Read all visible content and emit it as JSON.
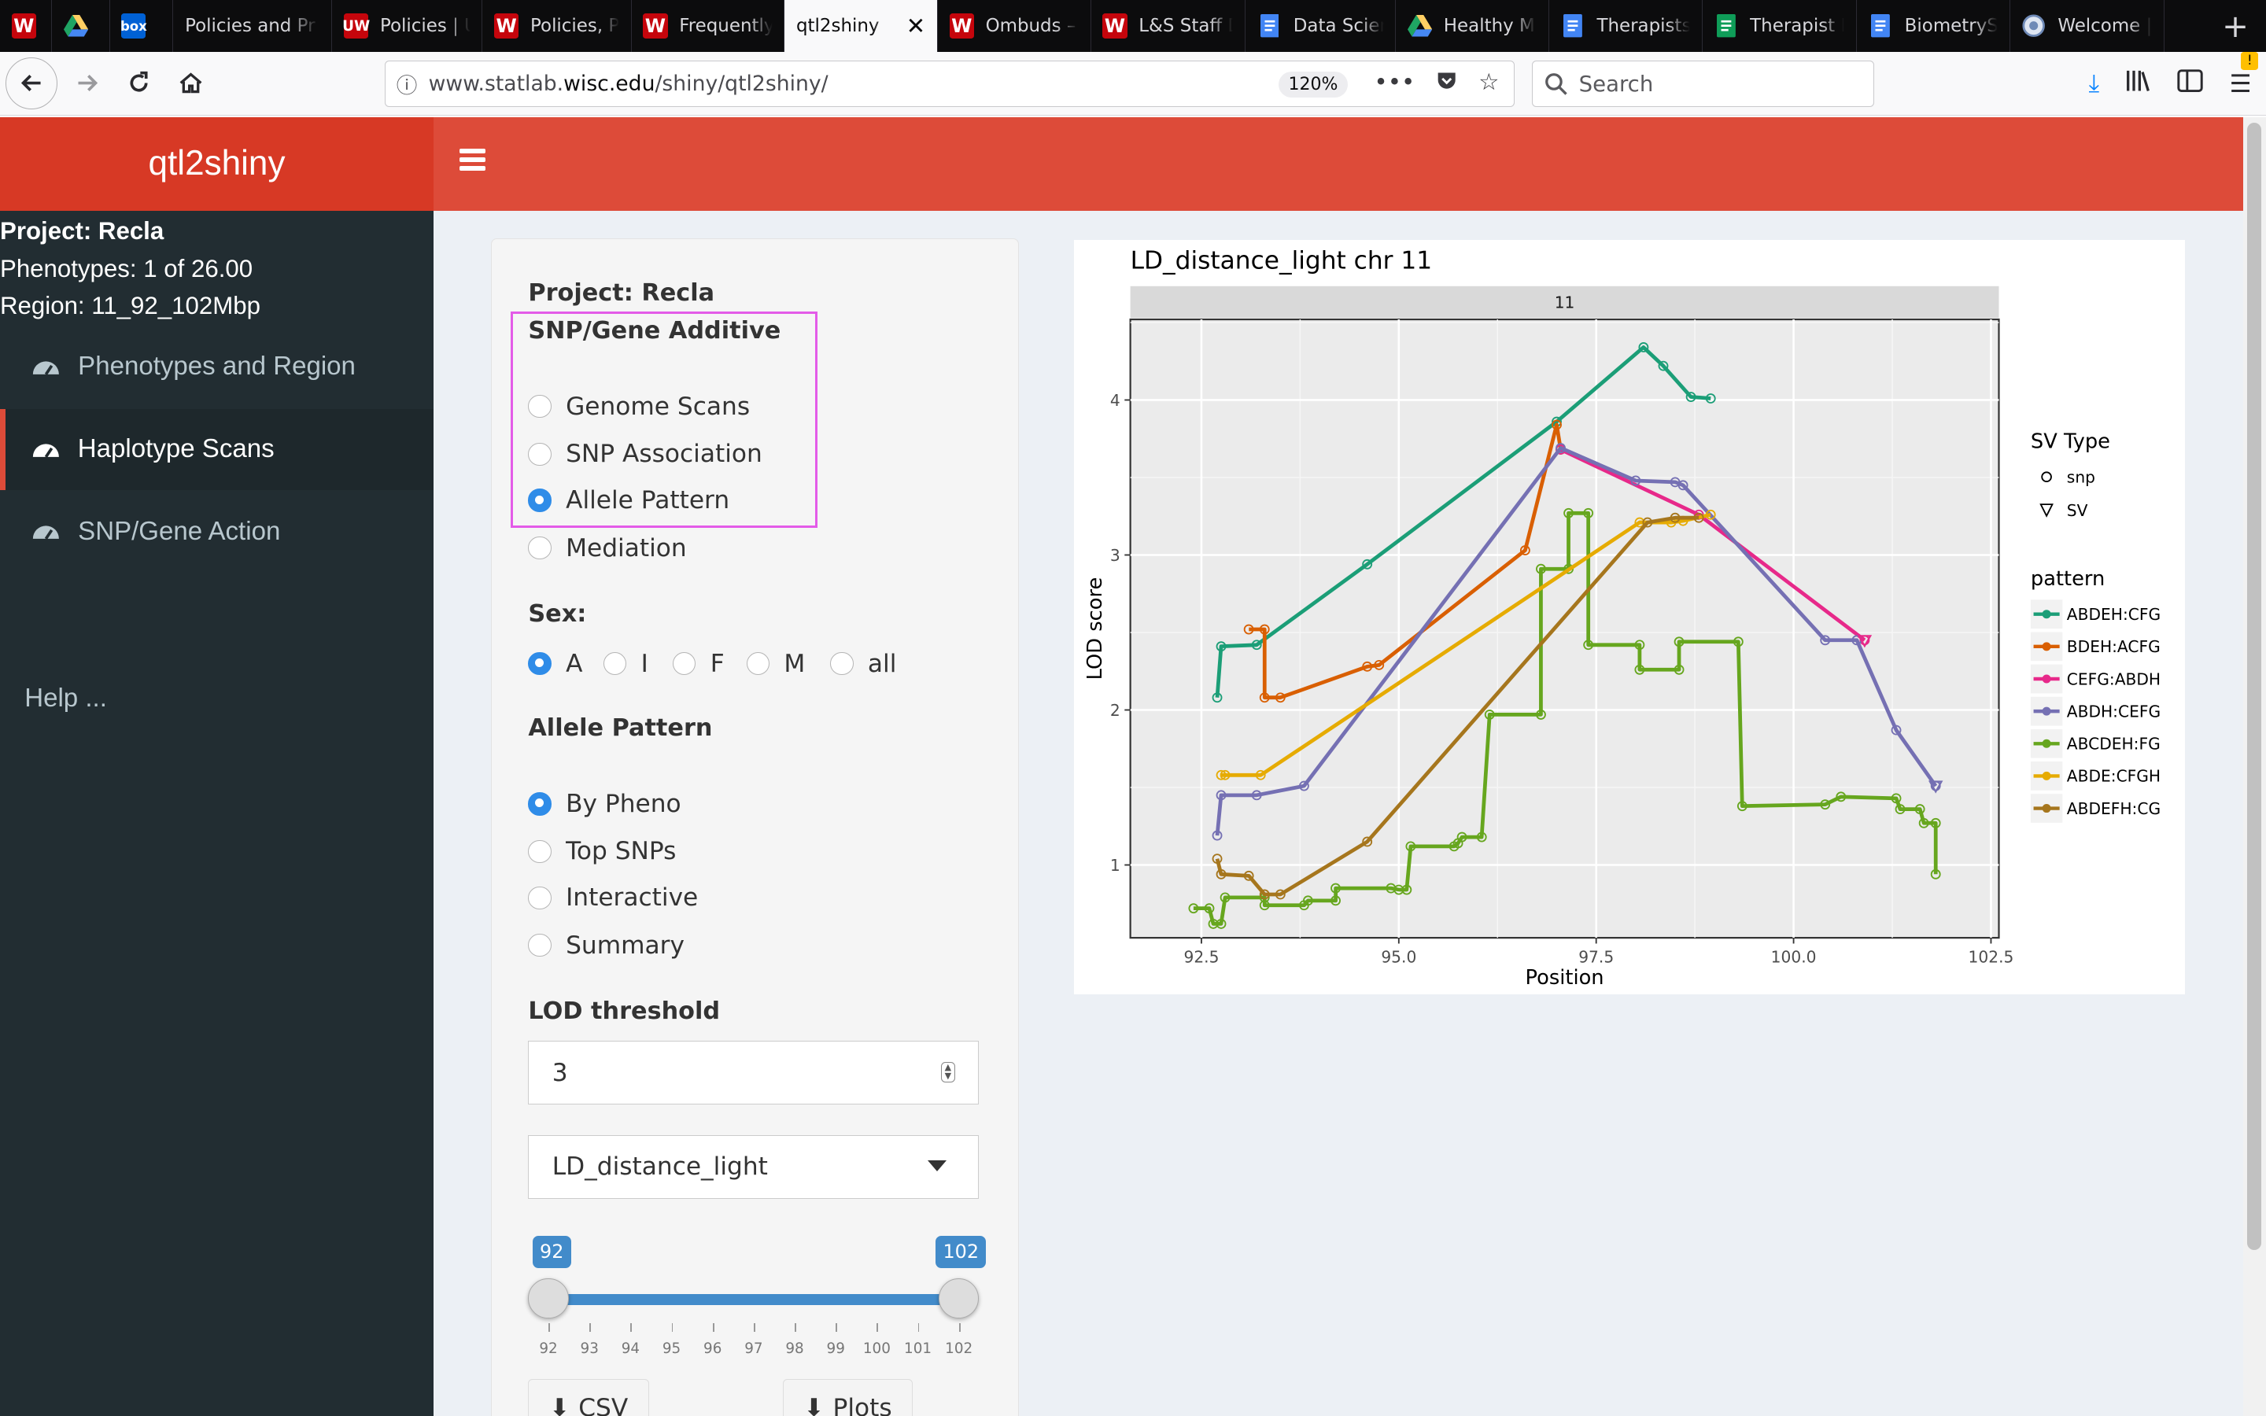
{
  "browser": {
    "tabs": [
      {
        "title": "",
        "icon": "W",
        "icon_color": "#c5050c"
      },
      {
        "title": "",
        "icon": "drive",
        "icon_color": "#1fa463"
      },
      {
        "title": "",
        "icon": "box",
        "icon_color": "#0061d5"
      },
      {
        "title": "Policies and Pr",
        "icon": "",
        "icon_color": ""
      },
      {
        "title": "Policies | U",
        "icon": "UW",
        "icon_color": "#c5050c"
      },
      {
        "title": "Policies, P",
        "icon": "W",
        "icon_color": "#c5050c"
      },
      {
        "title": "Frequently",
        "icon": "W",
        "icon_color": "#c5050c"
      },
      {
        "title": "qtl2shiny",
        "icon": "",
        "icon_color": "",
        "active": true
      },
      {
        "title": "Ombuds –",
        "icon": "W",
        "icon_color": "#c5050c"
      },
      {
        "title": "L&S Staff D",
        "icon": "W",
        "icon_color": "#c5050c"
      },
      {
        "title": "Data Scien",
        "icon": "doc",
        "icon_color": "#4285f4"
      },
      {
        "title": "Healthy Mi",
        "icon": "drive",
        "icon_color": "#1fa463"
      },
      {
        "title": "Therapists",
        "icon": "doc",
        "icon_color": "#4285f4"
      },
      {
        "title": "Therapist I",
        "icon": "sheet",
        "icon_color": "#0f9d58"
      },
      {
        "title": "BiometrySe",
        "icon": "doc",
        "icon_color": "#4285f4"
      },
      {
        "title": "Welcome |",
        "icon": "globe",
        "icon_color": "#6f8ab7"
      }
    ],
    "url_prefix": "www.statlab.",
    "url_domain": "wisc.edu",
    "url_path": "/shiny/qtl2shiny/",
    "zoom": "120%",
    "search_placeholder": "Search"
  },
  "app": {
    "title": "qtl2shiny",
    "sidebar": {
      "project": "Project: Recla",
      "phenotypes": "Phenotypes: 1 of 26.00",
      "region": "Region: 11_92_102Mbp",
      "items": [
        {
          "label": "Phenotypes and Region",
          "active": false
        },
        {
          "label": "Haplotype Scans",
          "active": true
        },
        {
          "label": "SNP/Gene Action",
          "active": false
        }
      ],
      "help": "Help ..."
    },
    "panel": {
      "project": "Project: Recla",
      "mode_label": "SNP/Gene Additive",
      "modes": [
        "Genome Scans",
        "SNP Association",
        "Allele Pattern",
        "Mediation"
      ],
      "mode_selected": "Allele Pattern",
      "sex_label": "Sex:",
      "sex_options": [
        "A",
        "I",
        "F",
        "M",
        "all"
      ],
      "sex_selected": "A",
      "allele_label": "Allele Pattern",
      "allele_options": [
        "By Pheno",
        "Top SNPs",
        "Interactive",
        "Summary"
      ],
      "allele_selected": "By Pheno",
      "lod_label": "LOD threshold",
      "lod_value": "3",
      "pheno_select": "LD_distance_light",
      "slider_min_label": "92",
      "slider_max_label": "102",
      "slider_ticks": [
        "92",
        "93",
        "94",
        "95",
        "96",
        "97",
        "98",
        "99",
        "100",
        "101",
        "102"
      ],
      "csv_button": "CSV",
      "plots_button": "Plots"
    }
  },
  "chart_data": {
    "type": "line",
    "title": "LD_distance_light chr 11",
    "facet_label": "11",
    "xlabel": "Position",
    "ylabel": "LOD score",
    "xlim": [
      91.6,
      102.6
    ],
    "ylim": [
      0.53,
      4.52
    ],
    "xticks": [
      92.5,
      95.0,
      97.5,
      100.0,
      102.5
    ],
    "xtick_labels": [
      "92.5",
      "95.0",
      "97.5",
      "100.0",
      "102.5"
    ],
    "yticks": [
      1,
      2,
      3,
      4
    ],
    "ytick_labels": [
      "1",
      "2",
      "3",
      "4"
    ],
    "grid": true,
    "legend_sv_title": "SV Type",
    "legend_sv": [
      {
        "label": "snp",
        "shape": "circle"
      },
      {
        "label": "SV",
        "shape": "triangle"
      }
    ],
    "legend_pattern_title": "pattern",
    "series": [
      {
        "name": "ABDEH:CFG",
        "color": "#1b9e77",
        "points": [
          [
            92.7,
            2.08
          ],
          [
            92.75,
            2.41
          ],
          [
            93.2,
            2.42
          ],
          [
            94.6,
            2.94
          ],
          [
            97.0,
            3.86
          ],
          [
            98.1,
            4.34
          ],
          [
            98.35,
            4.22
          ],
          [
            98.7,
            4.02
          ],
          [
            98.95,
            4.01
          ]
        ]
      },
      {
        "name": "BDEH:ACFG",
        "color": "#d95f02",
        "points": [
          [
            93.1,
            2.52
          ],
          [
            93.3,
            2.52
          ],
          [
            93.3,
            2.08
          ],
          [
            93.5,
            2.08
          ],
          [
            94.6,
            2.28
          ],
          [
            94.75,
            2.29
          ],
          [
            96.6,
            3.03
          ],
          [
            97.0,
            3.84
          ],
          [
            97.05,
            3.68
          ]
        ]
      },
      {
        "name": "CEFG:ABDH",
        "color": "#e7298a",
        "points": [
          [
            97.05,
            3.68
          ],
          [
            98.8,
            3.26
          ],
          [
            100.9,
            2.45
          ]
        ]
      },
      {
        "name": "ABDH:CEFG",
        "color": "#7570b3",
        "points": [
          [
            92.7,
            1.19
          ],
          [
            92.75,
            1.45
          ],
          [
            93.2,
            1.45
          ],
          [
            93.8,
            1.51
          ],
          [
            97.05,
            3.69
          ],
          [
            98.0,
            3.48
          ],
          [
            98.5,
            3.47
          ],
          [
            98.6,
            3.45
          ],
          [
            100.4,
            2.45
          ],
          [
            100.8,
            2.45
          ],
          [
            101.3,
            1.87
          ],
          [
            101.8,
            1.51
          ]
        ]
      },
      {
        "name": "ABCDEH:FG",
        "color": "#66a61e",
        "points": [
          [
            92.4,
            0.72
          ],
          [
            92.6,
            0.72
          ],
          [
            92.65,
            0.62
          ],
          [
            92.75,
            0.62
          ],
          [
            92.8,
            0.79
          ],
          [
            93.3,
            0.79
          ],
          [
            93.3,
            0.74
          ],
          [
            93.8,
            0.74
          ],
          [
            93.85,
            0.77
          ],
          [
            94.2,
            0.77
          ],
          [
            94.2,
            0.85
          ],
          [
            94.9,
            0.85
          ],
          [
            95.0,
            0.84
          ],
          [
            95.1,
            0.84
          ],
          [
            95.15,
            1.12
          ],
          [
            95.7,
            1.12
          ],
          [
            95.75,
            1.14
          ],
          [
            95.8,
            1.18
          ],
          [
            96.05,
            1.18
          ],
          [
            96.15,
            1.97
          ],
          [
            96.8,
            1.97
          ],
          [
            96.8,
            2.91
          ],
          [
            97.15,
            2.91
          ],
          [
            97.15,
            3.27
          ],
          [
            97.4,
            3.27
          ],
          [
            97.4,
            2.42
          ],
          [
            98.05,
            2.42
          ],
          [
            98.05,
            2.26
          ],
          [
            98.55,
            2.26
          ],
          [
            98.55,
            2.44
          ],
          [
            99.3,
            2.44
          ],
          [
            99.35,
            1.38
          ],
          [
            100.4,
            1.39
          ],
          [
            100.6,
            1.44
          ],
          [
            101.3,
            1.43
          ],
          [
            101.35,
            1.36
          ],
          [
            101.6,
            1.36
          ],
          [
            101.65,
            1.27
          ],
          [
            101.8,
            1.27
          ],
          [
            101.8,
            0.94
          ]
        ]
      },
      {
        "name": "ABDE:CFGH",
        "color": "#e6ab02",
        "points": [
          [
            92.75,
            1.58
          ],
          [
            92.8,
            1.58
          ],
          [
            93.25,
            1.58
          ],
          [
            98.05,
            3.21
          ],
          [
            98.45,
            3.21
          ],
          [
            98.6,
            3.22
          ],
          [
            98.95,
            3.26
          ]
        ]
      },
      {
        "name": "ABDEFH:CG",
        "color": "#a6761d",
        "points": [
          [
            92.7,
            1.04
          ],
          [
            92.75,
            0.94
          ],
          [
            93.1,
            0.93
          ],
          [
            93.3,
            0.81
          ],
          [
            93.5,
            0.81
          ],
          [
            94.6,
            1.15
          ],
          [
            98.15,
            3.21
          ],
          [
            98.5,
            3.24
          ],
          [
            98.8,
            3.24
          ]
        ]
      }
    ],
    "sv_points": [
      {
        "series": "ABDH:CEFG",
        "x": 101.8,
        "y": 1.51
      },
      {
        "series": "CEFG:ABDH",
        "x": 100.9,
        "y": 2.45
      }
    ]
  }
}
